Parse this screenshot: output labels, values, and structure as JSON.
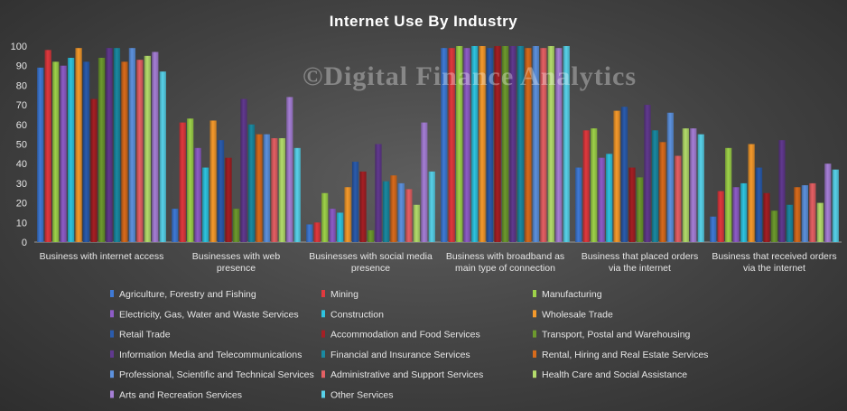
{
  "chart_data": {
    "type": "bar",
    "title": "Internet  Use By Industry",
    "watermark": "©Digital Finance Analytics",
    "ylim": [
      0,
      100
    ],
    "yticks": [
      0,
      10,
      20,
      30,
      40,
      50,
      60,
      70,
      80,
      90,
      100
    ],
    "categories": [
      [
        "Business with internet access"
      ],
      [
        "Businesses with web",
        "presence"
      ],
      [
        "Businesses with social media",
        "presence"
      ],
      [
        "Business with broadband as",
        "main type of connection"
      ],
      [
        "Business that placed orders",
        "via the internet"
      ],
      [
        "Business that received orders",
        "via the internet"
      ]
    ],
    "series": [
      {
        "name": "Agriculture, Forestry and Fishing",
        "color": "#3f7ad6",
        "values": [
          89,
          17,
          9,
          99,
          38,
          13
        ]
      },
      {
        "name": "Mining",
        "color": "#e0393e",
        "values": [
          98,
          61,
          10,
          99,
          57,
          26
        ]
      },
      {
        "name": "Manufacturing",
        "color": "#9ed24a",
        "values": [
          92,
          63,
          25,
          100,
          58,
          48
        ]
      },
      {
        "name": "Electricity, Gas, Water and Waste Services",
        "color": "#8e5cc7",
        "values": [
          90,
          48,
          17,
          99,
          43,
          28
        ]
      },
      {
        "name": "Construction",
        "color": "#2ec4e0",
        "values": [
          94,
          38,
          15,
          100,
          45,
          30
        ]
      },
      {
        "name": "Wholesale Trade",
        "color": "#f59a2c",
        "values": [
          99,
          62,
          28,
          100,
          67,
          50
        ]
      },
      {
        "name": "Retail Trade",
        "color": "#2b5cad",
        "values": [
          92,
          52,
          41,
          99,
          69,
          38
        ]
      },
      {
        "name": "Accommodation and Food Services",
        "color": "#a51f24",
        "values": [
          73,
          43,
          36,
          100,
          38,
          25
        ]
      },
      {
        "name": "Transport, Postal and Warehousing",
        "color": "#6d9a2e",
        "values": [
          94,
          17,
          6,
          100,
          33,
          16
        ]
      },
      {
        "name": "Information Media and Telecommunications",
        "color": "#61398f",
        "values": [
          99,
          73,
          50,
          100,
          70,
          52
        ]
      },
      {
        "name": "Financial and Insurance Services",
        "color": "#1a8aa2",
        "values": [
          99,
          60,
          31,
          100,
          57,
          19
        ]
      },
      {
        "name": "Rental, Hiring and Real Estate Services",
        "color": "#d86b1c",
        "values": [
          92,
          55,
          34,
          99,
          51,
          28
        ]
      },
      {
        "name": "Professional, Scientific and Technical Services",
        "color": "#5d92de",
        "values": [
          99,
          55,
          30,
          100,
          66,
          29
        ]
      },
      {
        "name": "Administrative and Support Services",
        "color": "#e56064",
        "values": [
          93,
          53,
          27,
          99,
          44,
          30
        ]
      },
      {
        "name": "Health Care and Social Assistance",
        "color": "#b4dd6c",
        "values": [
          95,
          53,
          19,
          100,
          58,
          20
        ]
      },
      {
        "name": "Arts and Recreation Services",
        "color": "#a67fd6",
        "values": [
          97,
          74,
          61,
          99,
          58,
          40
        ]
      },
      {
        "name": "Other Services",
        "color": "#58d2ea",
        "values": [
          87,
          48,
          36,
          100,
          55,
          37
        ]
      }
    ]
  }
}
